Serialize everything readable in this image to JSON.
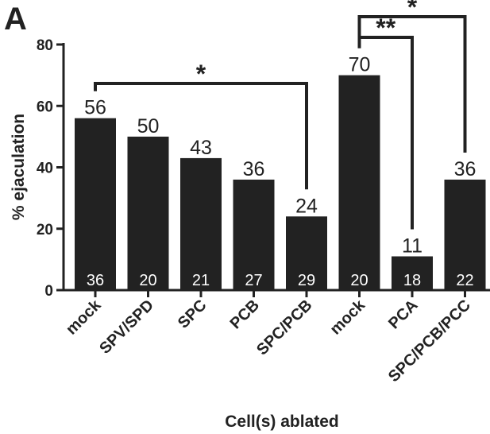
{
  "panel_label": "A",
  "colors": {
    "bar": "#222222",
    "ink": "#222222",
    "n_text": "#ffffff"
  },
  "chart_data": {
    "type": "bar",
    "title": "",
    "xlabel": "Cell(s) ablated",
    "ylabel": "% ejaculation",
    "ylim": [
      0,
      80
    ],
    "yticks": [
      0,
      20,
      40,
      60,
      80
    ],
    "grid": false,
    "legend": "none",
    "categories": [
      "mock",
      "SPV/SPD",
      "SPC",
      "PCB",
      "SPC/PCB",
      "mock",
      "PCA",
      "SPC/PCB/PCC"
    ],
    "values": [
      56,
      50,
      43,
      36,
      24,
      70,
      11,
      36
    ],
    "value_labels": [
      "56",
      "50",
      "43",
      "36",
      "24",
      "70",
      "11",
      "36"
    ],
    "n_labels": [
      "36",
      "20",
      "21",
      "27",
      "29",
      "20",
      "18",
      "22"
    ],
    "significance": [
      {
        "from": 0,
        "to": 4,
        "label": "*",
        "level": 1
      },
      {
        "from": 5,
        "to": 6,
        "label": "**",
        "level": 1
      },
      {
        "from": 5,
        "to": 7,
        "label": "*",
        "level": 2
      }
    ]
  }
}
